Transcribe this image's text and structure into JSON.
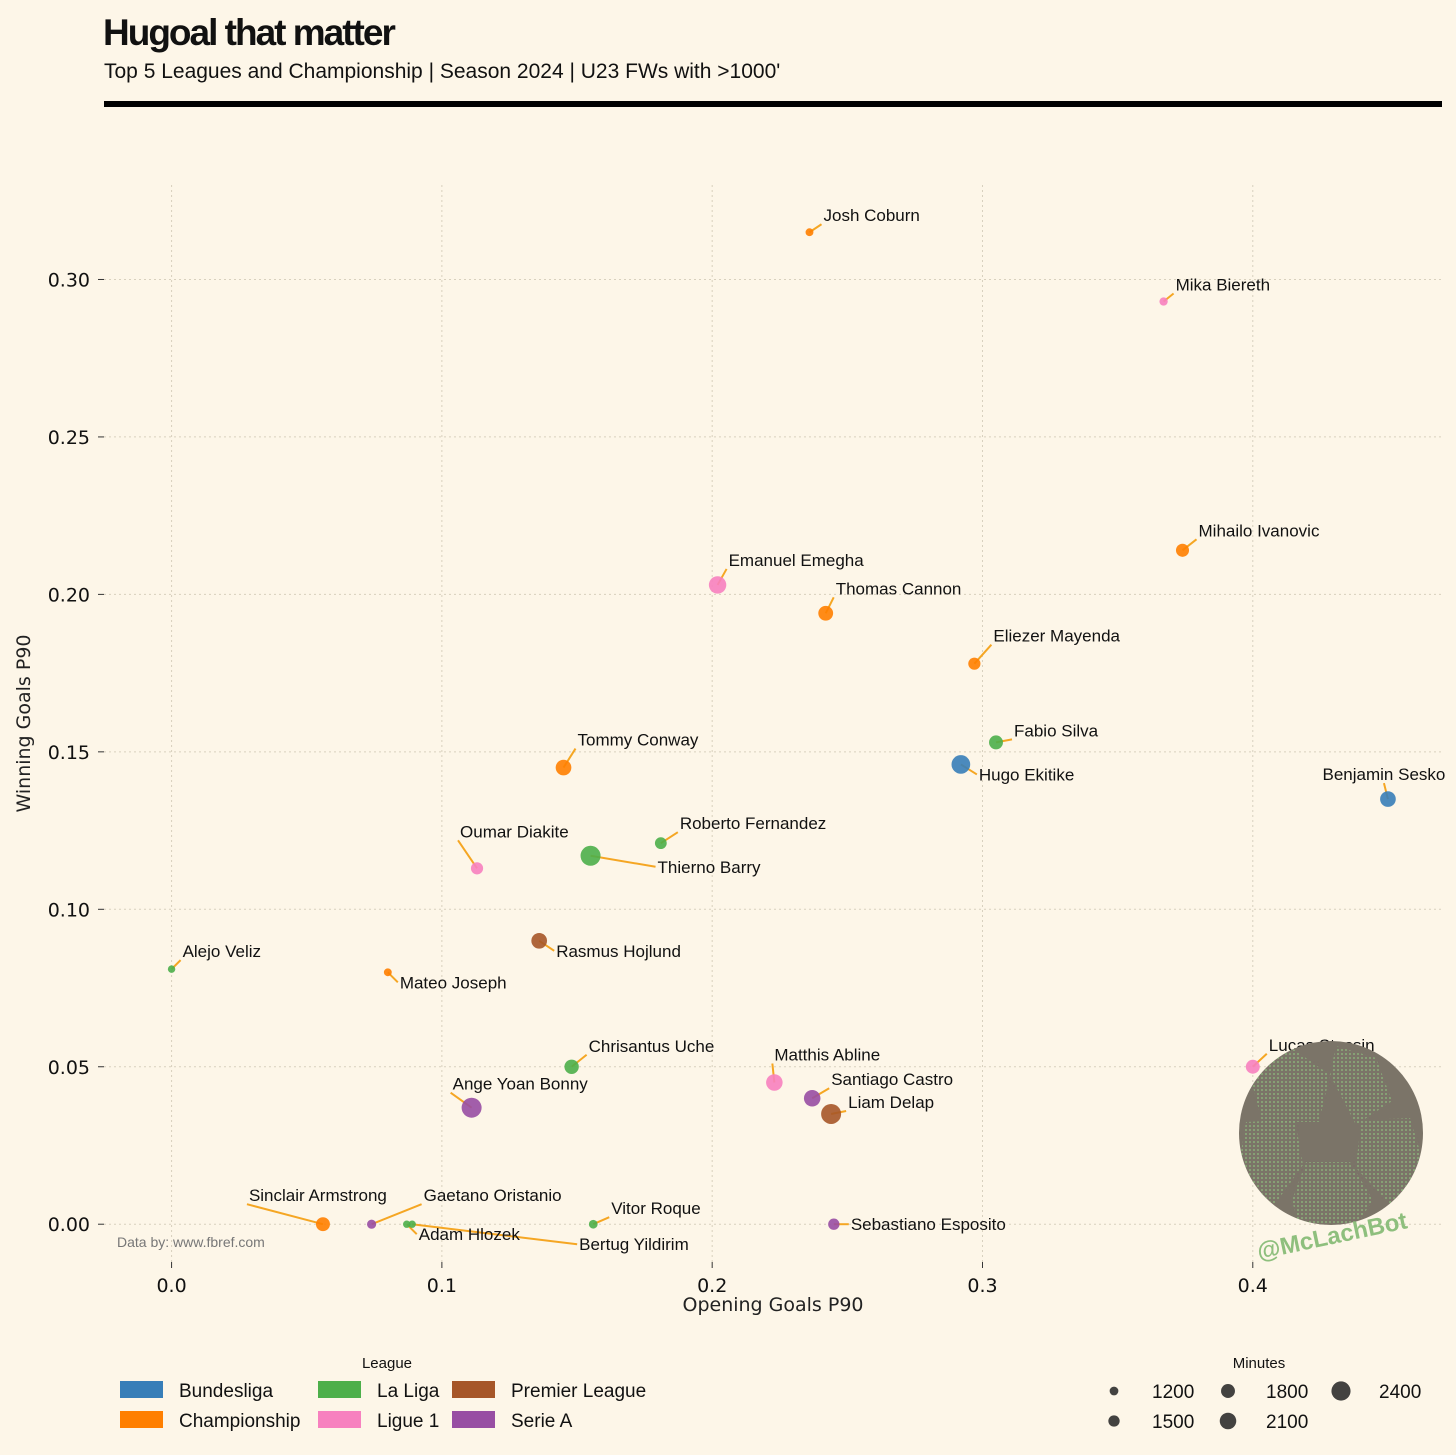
{
  "header": {
    "title": "Hugoal that matter",
    "subtitle": "Top 5 Leagues and Championship | Season 2024 | U23 FWs with >1000'"
  },
  "source": "Data by: www.fbref.com",
  "watermark": "@McLachBot",
  "chart_data": {
    "type": "scatter",
    "xlabel": "Opening Goals P90",
    "ylabel": "Winning Goals P90",
    "xlim": [
      -0.025,
      0.47
    ],
    "ylim": [
      -0.012,
      0.33
    ],
    "xticks": [
      0.0,
      0.1,
      0.2,
      0.3,
      0.4
    ],
    "yticks": [
      0.0,
      0.05,
      0.1,
      0.15,
      0.2,
      0.25,
      0.3
    ],
    "xtick_labels": [
      "0.0",
      "0.1",
      "0.2",
      "0.3",
      "0.4"
    ],
    "ytick_labels": [
      "0.00",
      "0.05",
      "0.10",
      "0.15",
      "0.20",
      "0.25",
      "0.30"
    ],
    "grid": true,
    "leagues": [
      {
        "name": "Bundesliga",
        "color": "#377eb8"
      },
      {
        "name": "Championship",
        "color": "#ff7f00"
      },
      {
        "name": "La Liga",
        "color": "#4daf4a"
      },
      {
        "name": "Ligue 1",
        "color": "#f781bf"
      },
      {
        "name": "Premier League",
        "color": "#a65628"
      },
      {
        "name": "Serie A",
        "color": "#984ea3"
      }
    ],
    "league_legend_title": "League",
    "size_legend_title": "Minutes",
    "size_legend": [
      1200,
      1500,
      1800,
      2100,
      2400
    ],
    "size_legend_labels": [
      "1200",
      "1500",
      "1800",
      "2100",
      "2400"
    ],
    "players": [
      {
        "name": "Josh Coburn",
        "league": "Championship",
        "x": 0.236,
        "y": 0.315,
        "minutes": 1100
      },
      {
        "name": "Mika Biereth",
        "league": "Ligue 1",
        "x": 0.367,
        "y": 0.293,
        "minutes": 1150
      },
      {
        "name": "Mihailo Ivanovic",
        "league": "Championship",
        "x": 0.374,
        "y": 0.214,
        "minutes": 1700
      },
      {
        "name": "Emanuel Emegha",
        "league": "Ligue 1",
        "x": 0.202,
        "y": 0.203,
        "minutes": 2200
      },
      {
        "name": "Thomas Cannon",
        "league": "Championship",
        "x": 0.242,
        "y": 0.194,
        "minutes": 1900
      },
      {
        "name": "Eliezer Mayenda",
        "league": "Championship",
        "x": 0.297,
        "y": 0.178,
        "minutes": 1600
      },
      {
        "name": "Fabio Silva",
        "league": "La Liga",
        "x": 0.305,
        "y": 0.153,
        "minutes": 1800
      },
      {
        "name": "Hugo Ekitike",
        "league": "Bundesliga",
        "x": 0.292,
        "y": 0.146,
        "minutes": 2350
      },
      {
        "name": "Benjamin Sesko",
        "league": "Bundesliga",
        "x": 0.45,
        "y": 0.135,
        "minutes": 2000
      },
      {
        "name": "Tommy Conway",
        "league": "Championship",
        "x": 0.145,
        "y": 0.145,
        "minutes": 2000
      },
      {
        "name": "Roberto Fernandez",
        "league": "La Liga",
        "x": 0.181,
        "y": 0.121,
        "minutes": 1550
      },
      {
        "name": "Thierno Barry",
        "league": "La Liga",
        "x": 0.155,
        "y": 0.117,
        "minutes": 2500
      },
      {
        "name": "Oumar Diakite",
        "league": "Ligue 1",
        "x": 0.113,
        "y": 0.113,
        "minutes": 1600
      },
      {
        "name": "Rasmus Hojlund",
        "league": "Premier League",
        "x": 0.136,
        "y": 0.09,
        "minutes": 2000
      },
      {
        "name": "Alejo Veliz",
        "league": "La Liga",
        "x": 0.0,
        "y": 0.081,
        "minutes": 1050
      },
      {
        "name": "Mateo Joseph",
        "league": "Championship",
        "x": 0.08,
        "y": 0.08,
        "minutes": 1100
      },
      {
        "name": "Lucas Stassin",
        "league": "Ligue 1",
        "x": 0.4,
        "y": 0.05,
        "minutes": 1800
      },
      {
        "name": "Chrisantus Uche",
        "league": "La Liga",
        "x": 0.148,
        "y": 0.05,
        "minutes": 1850
      },
      {
        "name": "Matthis Abline",
        "league": "Ligue 1",
        "x": 0.223,
        "y": 0.045,
        "minutes": 2100
      },
      {
        "name": "Santiago Castro",
        "league": "Serie A",
        "x": 0.237,
        "y": 0.04,
        "minutes": 2100
      },
      {
        "name": "Liam Delap",
        "league": "Premier League",
        "x": 0.244,
        "y": 0.035,
        "minutes": 2500
      },
      {
        "name": "Ange Yoan Bonny",
        "league": "Serie A",
        "x": 0.111,
        "y": 0.037,
        "minutes": 2500
      },
      {
        "name": "Sinclair Armstrong",
        "league": "Championship",
        "x": 0.056,
        "y": 0.0,
        "minutes": 1800
      },
      {
        "name": "Gaetano Oristanio",
        "league": "Serie A",
        "x": 0.074,
        "y": 0.0,
        "minutes": 1250
      },
      {
        "name": "Adam Hlozek",
        "league": "La Liga",
        "x": 0.087,
        "y": 0.0,
        "minutes": 1050
      },
      {
        "name": "Bertug Yildirim",
        "league": "La Liga",
        "x": 0.089,
        "y": 0.0,
        "minutes": 1050
      },
      {
        "name": "Vitor Roque",
        "league": "La Liga",
        "x": 0.156,
        "y": 0.0,
        "minutes": 1200
      },
      {
        "name": "Sebastiano Esposito",
        "league": "Serie A",
        "x": 0.245,
        "y": 0.0,
        "minutes": 1500
      }
    ]
  }
}
